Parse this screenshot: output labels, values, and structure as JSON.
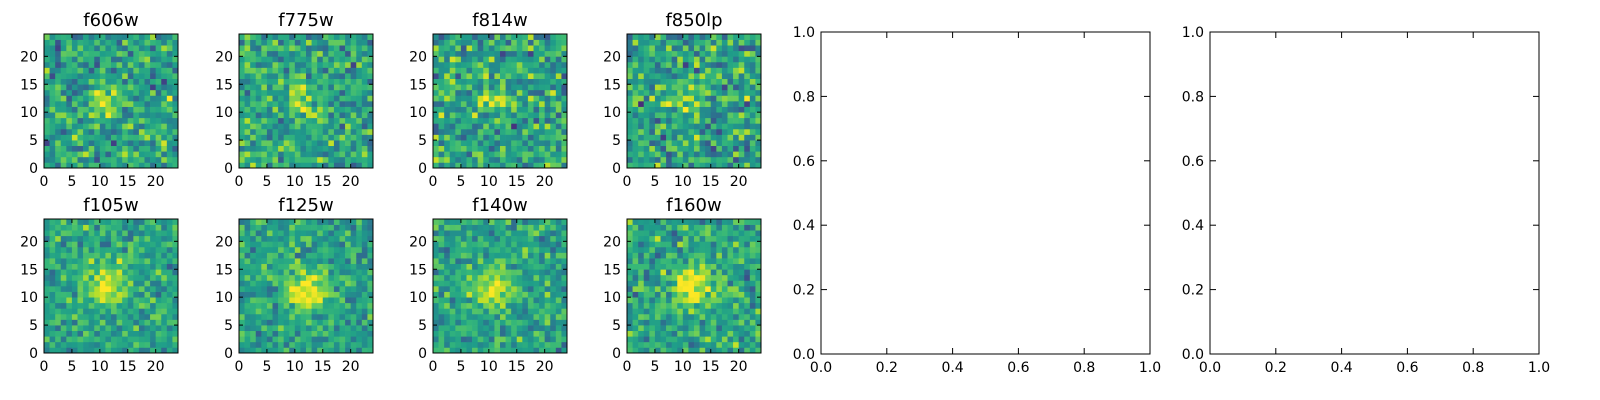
{
  "figure": {
    "background_color": "#ffffff"
  },
  "chart_data": [
    {
      "type": "heatmap",
      "title": "f606w",
      "xlim": [
        0,
        24
      ],
      "ylim": [
        0,
        24
      ],
      "xticks": [
        0,
        5,
        10,
        15,
        20
      ],
      "xtick_labels": [
        "0",
        "5",
        "10",
        "15",
        "20"
      ],
      "yticks": [
        0,
        5,
        10,
        15,
        20
      ],
      "ytick_labels": [
        "0",
        "5",
        "10",
        "15",
        "20"
      ],
      "grid_size": [
        24,
        24
      ],
      "colormap": "viridis",
      "source_center": [
        11,
        12
      ],
      "source_amplitude": 0.4,
      "source_width": 1.8,
      "noise_level": 0.23
    },
    {
      "type": "heatmap",
      "title": "f775w",
      "xlim": [
        0,
        24
      ],
      "ylim": [
        0,
        24
      ],
      "xticks": [
        0,
        5,
        10,
        15,
        20
      ],
      "xtick_labels": [
        "0",
        "5",
        "10",
        "15",
        "20"
      ],
      "yticks": [
        0,
        5,
        10,
        15,
        20
      ],
      "ytick_labels": [
        "0",
        "5",
        "10",
        "15",
        "20"
      ],
      "grid_size": [
        24,
        24
      ],
      "colormap": "viridis",
      "source_center": [
        11,
        12
      ],
      "source_amplitude": 0.35,
      "source_width": 1.8,
      "noise_level": 0.23
    },
    {
      "type": "heatmap",
      "title": "f814w",
      "xlim": [
        0,
        24
      ],
      "ylim": [
        0,
        24
      ],
      "xticks": [
        0,
        5,
        10,
        15,
        20
      ],
      "xtick_labels": [
        "0",
        "5",
        "10",
        "15",
        "20"
      ],
      "yticks": [
        0,
        5,
        10,
        15,
        20
      ],
      "ytick_labels": [
        "0",
        "5",
        "10",
        "15",
        "20"
      ],
      "grid_size": [
        24,
        24
      ],
      "colormap": "viridis",
      "source_center": [
        11,
        12
      ],
      "source_amplitude": 0.35,
      "source_width": 1.5,
      "noise_level": 0.25
    },
    {
      "type": "heatmap",
      "title": "f850lp",
      "xlim": [
        0,
        24
      ],
      "ylim": [
        0,
        24
      ],
      "xticks": [
        0,
        5,
        10,
        15,
        20
      ],
      "xtick_labels": [
        "0",
        "5",
        "10",
        "15",
        "20"
      ],
      "yticks": [
        0,
        5,
        10,
        15,
        20
      ],
      "ytick_labels": [
        "0",
        "5",
        "10",
        "15",
        "20"
      ],
      "grid_size": [
        24,
        24
      ],
      "colormap": "viridis",
      "source_center": [
        11,
        12
      ],
      "source_amplitude": 0.2,
      "source_width": 1.8,
      "noise_level": 0.26
    },
    {
      "type": "heatmap",
      "title": "f105w",
      "xlim": [
        0,
        24
      ],
      "ylim": [
        0,
        24
      ],
      "xticks": [
        0,
        5,
        10,
        15,
        20
      ],
      "xtick_labels": [
        "0",
        "5",
        "10",
        "15",
        "20"
      ],
      "yticks": [
        0,
        5,
        10,
        15,
        20
      ],
      "ytick_labels": [
        "0",
        "5",
        "10",
        "15",
        "20"
      ],
      "grid_size": [
        24,
        24
      ],
      "colormap": "viridis",
      "source_center": [
        11,
        12
      ],
      "source_amplitude": 0.4,
      "source_width": 2.8,
      "noise_level": 0.18
    },
    {
      "type": "heatmap",
      "title": "f125w",
      "xlim": [
        0,
        24
      ],
      "ylim": [
        0,
        24
      ],
      "xticks": [
        0,
        5,
        10,
        15,
        20
      ],
      "xtick_labels": [
        "0",
        "5",
        "10",
        "15",
        "20"
      ],
      "yticks": [
        0,
        5,
        10,
        15,
        20
      ],
      "ytick_labels": [
        "0",
        "5",
        "10",
        "15",
        "20"
      ],
      "grid_size": [
        24,
        24
      ],
      "colormap": "viridis",
      "source_center": [
        12,
        11
      ],
      "source_amplitude": 0.38,
      "source_width": 2.8,
      "noise_level": 0.18
    },
    {
      "type": "heatmap",
      "title": "f140w",
      "xlim": [
        0,
        24
      ],
      "ylim": [
        0,
        24
      ],
      "xticks": [
        0,
        5,
        10,
        15,
        20
      ],
      "xtick_labels": [
        "0",
        "5",
        "10",
        "15",
        "20"
      ],
      "yticks": [
        0,
        5,
        10,
        15,
        20
      ],
      "ytick_labels": [
        "0",
        "5",
        "10",
        "15",
        "20"
      ],
      "grid_size": [
        24,
        24
      ],
      "colormap": "viridis",
      "source_center": [
        11,
        12
      ],
      "source_amplitude": 0.42,
      "source_width": 2.5,
      "noise_level": 0.18
    },
    {
      "type": "heatmap",
      "title": "f160w",
      "xlim": [
        0,
        24
      ],
      "ylim": [
        0,
        24
      ],
      "xticks": [
        0,
        5,
        10,
        15,
        20
      ],
      "xtick_labels": [
        "0",
        "5",
        "10",
        "15",
        "20"
      ],
      "yticks": [
        0,
        5,
        10,
        15,
        20
      ],
      "ytick_labels": [
        "0",
        "5",
        "10",
        "15",
        "20"
      ],
      "grid_size": [
        24,
        24
      ],
      "colormap": "viridis",
      "source_center": [
        12,
        12
      ],
      "source_amplitude": 0.4,
      "source_width": 2.5,
      "noise_level": 0.2
    },
    {
      "type": "line",
      "title": "",
      "series": [],
      "xlim": [
        0.0,
        1.0
      ],
      "ylim": [
        0.0,
        1.0
      ],
      "xticks": [
        0.0,
        0.2,
        0.4,
        0.6,
        0.8,
        1.0
      ],
      "xtick_labels": [
        "0.0",
        "0.2",
        "0.4",
        "0.6",
        "0.8",
        "1.0"
      ],
      "yticks": [
        0.0,
        0.2,
        0.4,
        0.6,
        0.8,
        1.0
      ],
      "ytick_labels": [
        "0.0",
        "0.2",
        "0.4",
        "0.6",
        "0.8",
        "1.0"
      ]
    },
    {
      "type": "line",
      "title": "",
      "series": [],
      "xlim": [
        0.0,
        1.0
      ],
      "ylim": [
        0.0,
        1.0
      ],
      "xticks": [
        0.0,
        0.2,
        0.4,
        0.6,
        0.8,
        1.0
      ],
      "xtick_labels": [
        "0.0",
        "0.2",
        "0.4",
        "0.6",
        "0.8",
        "1.0"
      ],
      "yticks": [
        0.0,
        0.2,
        0.4,
        0.6,
        0.8,
        1.0
      ],
      "ytick_labels": [
        "0.0",
        "0.2",
        "0.4",
        "0.6",
        "0.8",
        "1.0"
      ]
    }
  ]
}
